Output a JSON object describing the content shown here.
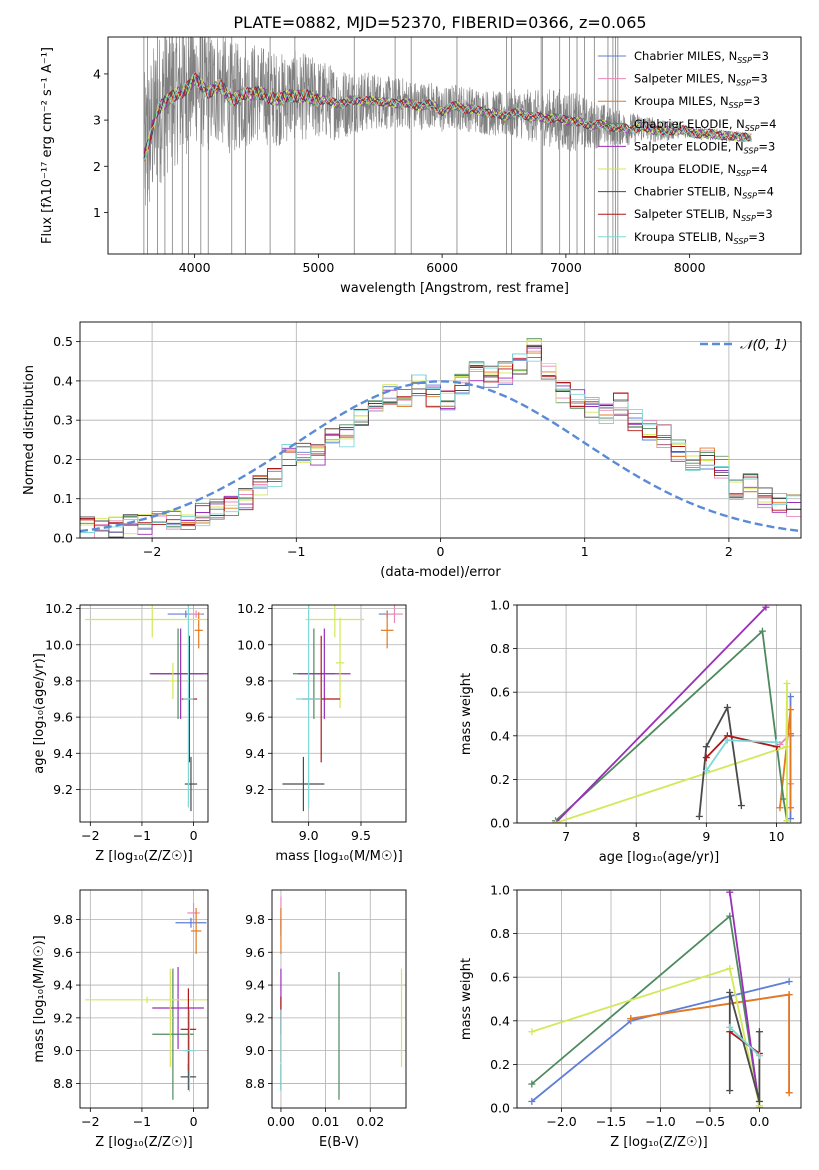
{
  "figure": {
    "title": "PLATE=0882, MJD=52370, FIBERID=0366, z=0.065"
  },
  "models": [
    {
      "name": "Chabrier MILES",
      "nssp": "3",
      "color": "#5f7fd6"
    },
    {
      "name": "Salpeter MILES",
      "nssp": "3",
      "color": "#e88ab8"
    },
    {
      "name": "Kroupa MILES",
      "nssp": "3",
      "color": "#e07a22"
    },
    {
      "name": "Chabrier ELODIE",
      "nssp": "4",
      "color": "#4e8a5e"
    },
    {
      "name": "Salpeter ELODIE",
      "nssp": "3",
      "color": "#9a2fb8"
    },
    {
      "name": "Kroupa ELODIE",
      "nssp": "4",
      "color": "#d3e85a"
    },
    {
      "name": "Chabrier STELIB",
      "nssp": "4",
      "color": "#4a4a4a"
    },
    {
      "name": "Salpeter STELIB",
      "nssp": "3",
      "color": "#b01818"
    },
    {
      "name": "Kroupa STELIB",
      "nssp": "3",
      "color": "#7fd8d8"
    }
  ],
  "chart_data": [
    {
      "id": "spectrum",
      "type": "line",
      "title": "PLATE=0882, MJD=52370, FIBERID=0366, z=0.065",
      "xlabel": "wavelength [Angstrom, rest frame]",
      "ylabel": "Flux [fλ10⁻¹⁷ erg cm⁻² s⁻¹ A⁻¹]",
      "xlim": [
        3300,
        8900
      ],
      "ylim": [
        0.1,
        4.8
      ],
      "xticks": [
        4000,
        5000,
        6000,
        7000,
        8000
      ],
      "yticks": [
        1,
        2,
        3,
        4
      ],
      "grid": false,
      "legend": "upper-right",
      "data_color": "#808080",
      "continuum": {
        "x": [
          3590,
          3700,
          3800,
          3900,
          4000,
          4100,
          4200,
          4300,
          4400,
          4500,
          4600,
          4700,
          4800,
          4900,
          5000,
          5100,
          5200,
          5300,
          5400,
          5500,
          5600,
          5700,
          5800,
          5900,
          6000,
          6100,
          6200,
          6300,
          6400,
          6500,
          6600,
          6700,
          6800,
          6900,
          7000,
          7100,
          7200,
          7300,
          7400,
          7500,
          7600,
          7700,
          7800,
          7900,
          8000,
          8100,
          8200,
          8300,
          8400,
          8500
        ],
        "y": [
          2.2,
          3.2,
          3.5,
          3.6,
          3.9,
          3.6,
          3.75,
          3.45,
          3.55,
          3.6,
          3.5,
          3.45,
          3.55,
          3.5,
          3.45,
          3.4,
          3.35,
          3.45,
          3.4,
          3.42,
          3.35,
          3.38,
          3.3,
          3.35,
          3.2,
          3.3,
          3.25,
          3.2,
          3.15,
          3.1,
          3.15,
          3.1,
          3.05,
          3.05,
          3.0,
          2.95,
          2.9,
          2.9,
          2.85,
          2.8,
          2.85,
          2.8,
          2.75,
          2.8,
          2.75,
          2.7,
          2.7,
          2.65,
          2.65,
          2.6
        ]
      },
      "noise_envelope": {
        "x": [
          3590,
          3800,
          4000,
          4500,
          5000,
          5500,
          6000,
          6500,
          6800,
          7000,
          7400,
          8000,
          8500
        ],
        "amplitude": [
          1.8,
          1.6,
          1.4,
          1.1,
          0.9,
          0.6,
          0.5,
          0.5,
          0.6,
          0.7,
          0.4,
          0.15,
          0.1
        ]
      },
      "spikes": [
        3590,
        3620,
        3700,
        3760,
        3820,
        3900,
        3950,
        4050,
        4110,
        4300,
        4410,
        4610,
        4810,
        5290,
        5620,
        5750,
        6120,
        6520,
        6560,
        6800,
        6810,
        6950,
        7030,
        7090,
        7150,
        7230,
        7340,
        7380,
        7400,
        7420
      ]
    },
    {
      "id": "residuals",
      "type": "histogram",
      "xlabel": "(data-model)/error",
      "ylabel": "Normed distribution",
      "xlim": [
        -2.5,
        2.5
      ],
      "ylim": [
        0.0,
        0.55
      ],
      "xticks": [
        -2,
        -1,
        0,
        1,
        2
      ],
      "yticks": [
        0.0,
        0.1,
        0.2,
        0.3,
        0.4,
        0.5
      ],
      "grid": true,
      "legend": "upper-right",
      "legend_label": "𝒩(0, 1)",
      "bin_width": 0.1,
      "bin_start": -2.5,
      "base_values": [
        0.025,
        0.028,
        0.03,
        0.035,
        0.038,
        0.04,
        0.045,
        0.05,
        0.06,
        0.075,
        0.08,
        0.1,
        0.13,
        0.15,
        0.21,
        0.22,
        0.21,
        0.25,
        0.26,
        0.31,
        0.33,
        0.37,
        0.36,
        0.39,
        0.36,
        0.35,
        0.39,
        0.42,
        0.41,
        0.42,
        0.44,
        0.48,
        0.42,
        0.37,
        0.36,
        0.33,
        0.32,
        0.34,
        0.3,
        0.27,
        0.26,
        0.22,
        0.2,
        0.2,
        0.18,
        0.12,
        0.14,
        0.1,
        0.09,
        0.08,
        0.07,
        0.06,
        0.05,
        0.04,
        0.035
      ],
      "normal_curve": {
        "mu": 0,
        "sigma": 1
      }
    },
    {
      "id": "age-vs-Z",
      "type": "errorbar",
      "xlabel": "Z [log₁₀(Z/Z☉)]",
      "ylabel": "age  [log₁₀(age/yr)]",
      "xlim": [
        -2.2,
        0.28
      ],
      "ylim": [
        9.02,
        10.22
      ],
      "xticks": [
        -2,
        -1,
        0
      ],
      "yticks": [
        9.2,
        9.4,
        9.6,
        9.8,
        10.0,
        10.2
      ],
      "grid": true,
      "points": [
        {
          "m": 0,
          "x": -0.15,
          "xerr": 0.35,
          "y": 10.17,
          "yerr": 0.02
        },
        {
          "m": 1,
          "x": 0.05,
          "xerr": 0.12,
          "y": 10.17,
          "yerr": 0.02
        },
        {
          "m": 2,
          "x": 0.1,
          "xerr": 0.08,
          "y": 10.08,
          "yerr": 0.1
        },
        {
          "m": 3,
          "x": -0.3,
          "xerr": 0.5,
          "y": 9.84,
          "yerr": 0.25
        },
        {
          "m": 4,
          "x": -0.25,
          "xerr": 0.6,
          "y": 9.84,
          "yerr": 0.25
        },
        {
          "m": 5,
          "x": -0.8,
          "xerr": 1.3,
          "y": 10.14,
          "yerr": 0.1
        },
        {
          "m": 5,
          "x": -0.4,
          "xerr": 0.08,
          "y": 9.8,
          "yerr": 0.1
        },
        {
          "m": 6,
          "x": -0.05,
          "xerr": 0.12,
          "y": 9.23,
          "yerr": 0.15
        },
        {
          "m": 7,
          "x": -0.08,
          "xerr": 0.15,
          "y": 9.7,
          "yerr": 0.35
        },
        {
          "m": 8,
          "x": -0.1,
          "xerr": 0.1,
          "y": 9.7,
          "yerr": 0.6
        }
      ]
    },
    {
      "id": "age-vs-mass",
      "type": "errorbar",
      "xlabel": "mass [log₁₀(M/M☉)]",
      "ylabel": "",
      "xlim": [
        8.65,
        9.93
      ],
      "ylim": [
        9.02,
        10.22
      ],
      "xticks": [
        9.0,
        9.5
      ],
      "yticks": [
        9.2,
        9.4,
        9.6,
        9.8,
        10.0,
        10.2
      ],
      "grid": true,
      "points": [
        {
          "m": 0,
          "x": 9.75,
          "xerr": 0.08,
          "y": 10.17,
          "yerr": 0.02
        },
        {
          "m": 1,
          "x": 9.82,
          "xerr": 0.08,
          "y": 10.17,
          "yerr": 0.05
        },
        {
          "m": 2,
          "x": 9.75,
          "xerr": 0.06,
          "y": 10.08,
          "yerr": 0.1
        },
        {
          "m": 3,
          "x": 9.05,
          "xerr": 0.2,
          "y": 9.84,
          "yerr": 0.25
        },
        {
          "m": 4,
          "x": 9.15,
          "xerr": 0.25,
          "y": 9.84,
          "yerr": 0.25
        },
        {
          "m": 5,
          "x": 9.25,
          "xerr": 0.28,
          "y": 10.14,
          "yerr": 0.1
        },
        {
          "m": 5,
          "x": 9.3,
          "xerr": 0.04,
          "y": 9.9,
          "yerr": 0.25
        },
        {
          "m": 6,
          "x": 8.95,
          "xerr": 0.2,
          "y": 9.23,
          "yerr": 0.15
        },
        {
          "m": 7,
          "x": 9.12,
          "xerr": 0.18,
          "y": 9.7,
          "yerr": 0.35
        },
        {
          "m": 8,
          "x": 9.0,
          "xerr": 0.12,
          "y": 9.7,
          "yerr": 0.6
        }
      ]
    },
    {
      "id": "weight-vs-age",
      "type": "line",
      "xlabel": "age  [log₁₀(age/yr)]",
      "ylabel": "mass weight",
      "xlim": [
        6.3,
        10.35
      ],
      "ylim": [
        0.0,
        1.0
      ],
      "xticks": [
        7,
        8,
        9,
        10
      ],
      "yticks": [
        0.0,
        0.2,
        0.4,
        0.6,
        0.8,
        1.0
      ],
      "grid": true,
      "series": [
        {
          "m": 0,
          "x": [
            10.2,
            10.2,
            10.2
          ],
          "y": [
            0.02,
            0.4,
            0.58
          ]
        },
        {
          "m": 1,
          "x": [
            10.05,
            10.2,
            10.2
          ],
          "y": [
            0.36,
            0.41,
            0.18
          ]
        },
        {
          "m": 2,
          "x": [
            10.05,
            10.2,
            10.2,
            10.2
          ],
          "y": [
            0.07,
            0.52,
            0.41,
            0.07
          ]
        },
        {
          "m": 3,
          "x": [
            6.85,
            9.8,
            10.1,
            10.15
          ],
          "y": [
            0.01,
            0.88,
            0.11,
            0.01
          ]
        },
        {
          "m": 4,
          "x": [
            6.85,
            9.85
          ],
          "y": [
            0.0,
            0.99
          ]
        },
        {
          "m": 5,
          "x": [
            6.85,
            10.14,
            10.15,
            10.15
          ],
          "y": [
            0.0,
            0.35,
            0.64,
            0.01
          ]
        },
        {
          "m": 6,
          "x": [
            8.9,
            9.0,
            9.3,
            9.5
          ],
          "y": [
            0.03,
            0.35,
            0.53,
            0.08
          ]
        },
        {
          "m": 7,
          "x": [
            9.0,
            9.3,
            10.0
          ],
          "y": [
            0.3,
            0.4,
            0.35
          ]
        },
        {
          "m": 8,
          "x": [
            9.0,
            9.3,
            10.0
          ],
          "y": [
            0.24,
            0.38,
            0.37
          ]
        }
      ]
    },
    {
      "id": "mass-vs-Z",
      "type": "errorbar",
      "xlabel": "Z [log₁₀(Z/Z☉)]",
      "ylabel": "mass [log₁₀(M/M☉)]",
      "xlim": [
        -2.2,
        0.28
      ],
      "ylim": [
        8.65,
        9.98
      ],
      "xticks": [
        -2,
        -1,
        0
      ],
      "yticks": [
        8.8,
        9.0,
        9.2,
        9.4,
        9.6,
        9.8
      ],
      "grid": true,
      "points": [
        {
          "m": 0,
          "x": -0.05,
          "xerr": 0.3,
          "y": 9.78,
          "yerr": 0.03
        },
        {
          "m": 1,
          "x": 0.0,
          "xerr": 0.12,
          "y": 9.84,
          "yerr": 0.06
        },
        {
          "m": 2,
          "x": 0.05,
          "xerr": 0.1,
          "y": 9.73,
          "yerr": 0.14
        },
        {
          "m": 3,
          "x": -0.4,
          "xerr": 0.4,
          "y": 9.1,
          "yerr": 0.4
        },
        {
          "m": 4,
          "x": -0.3,
          "xerr": 0.5,
          "y": 9.26,
          "yerr": 0.25
        },
        {
          "m": 5,
          "x": -0.9,
          "xerr": 1.2,
          "y": 9.31,
          "yerr": 0.02
        },
        {
          "m": 5,
          "x": -0.45,
          "xerr": 0.05,
          "y": 9.2,
          "yerr": 0.3
        },
        {
          "m": 6,
          "x": -0.1,
          "xerr": 0.15,
          "y": 8.84,
          "yerr": 0.08
        },
        {
          "m": 7,
          "x": -0.1,
          "xerr": 0.15,
          "y": 9.13,
          "yerr": 0.25
        },
        {
          "m": 8,
          "x": -0.08,
          "xerr": 0.12,
          "y": 9.0,
          "yerr": 0.25
        }
      ]
    },
    {
      "id": "mass-vs-ebv",
      "type": "errorbar",
      "xlabel": "E(B-V)",
      "ylabel": "",
      "xlim": [
        -0.002,
        0.028
      ],
      "ylim": [
        8.65,
        9.98
      ],
      "xticks": [
        0.0,
        0.01,
        0.02
      ],
      "xtick_labels": [
        "0.00",
        "0.01",
        "0.02"
      ],
      "yticks": [
        8.8,
        9.0,
        9.2,
        9.4,
        9.6,
        9.8
      ],
      "grid": true,
      "points": [
        {
          "m": 0,
          "x": 0.0,
          "xerr": 0,
          "y": 9.75,
          "yerr": 0.05
        },
        {
          "m": 1,
          "x": 0.0,
          "xerr": 0,
          "y": 9.84,
          "yerr": 0.1
        },
        {
          "m": 2,
          "x": 0.0,
          "xerr": 0,
          "y": 9.73,
          "yerr": 0.14
        },
        {
          "m": 3,
          "x": 0.013,
          "xerr": 0,
          "y": 9.09,
          "yerr": 0.39
        },
        {
          "m": 4,
          "x": 0.0,
          "xerr": 0,
          "y": 9.3,
          "yerr": 0.2
        },
        {
          "m": 5,
          "x": 0.027,
          "xerr": 0,
          "y": 9.2,
          "yerr": 0.3
        },
        {
          "m": 6,
          "x": 0.0,
          "xerr": 0,
          "y": 8.84,
          "yerr": 0.08
        },
        {
          "m": 7,
          "x": 0.0,
          "xerr": 0,
          "y": 9.13,
          "yerr": 0.2
        },
        {
          "m": 8,
          "x": 0.0,
          "xerr": 0,
          "y": 9.0,
          "yerr": 0.25
        }
      ]
    },
    {
      "id": "weight-vs-Z",
      "type": "line",
      "xlabel": "Z [log₁₀(Z/Z☉)]",
      "ylabel": "mass weight",
      "xlim": [
        -2.45,
        0.42
      ],
      "ylim": [
        0.0,
        1.0
      ],
      "xticks": [
        -2.0,
        -1.5,
        -1.0,
        -0.5,
        0.0
      ],
      "xtick_labels": [
        "−2.0",
        "−1.5",
        "−1.0",
        "−0.5",
        "0.0"
      ],
      "yticks": [
        0.0,
        0.2,
        0.4,
        0.6,
        0.8,
        1.0
      ],
      "grid": true,
      "series": [
        {
          "m": 0,
          "x": [
            -2.3,
            -1.3,
            0.3
          ],
          "y": [
            0.03,
            0.4,
            0.58
          ]
        },
        {
          "m": 1,
          "x": [
            -1.3,
            0.3,
            0.3
          ],
          "y": [
            0.41,
            0.52,
            0.07
          ]
        },
        {
          "m": 2,
          "x": [
            -1.3,
            0.3,
            0.3
          ],
          "y": [
            0.41,
            0.52,
            0.07
          ]
        },
        {
          "m": 3,
          "x": [
            -2.3,
            -0.3,
            0.0
          ],
          "y": [
            0.11,
            0.88,
            0.01
          ]
        },
        {
          "m": 4,
          "x": [
            -0.3,
            0.0
          ],
          "y": [
            0.99,
            0.0
          ]
        },
        {
          "m": 5,
          "x": [
            -2.3,
            -0.3,
            0.0,
            0.0
          ],
          "y": [
            0.35,
            0.64,
            0.01,
            0.01
          ]
        },
        {
          "m": 6,
          "x": [
            -0.3,
            -0.3,
            0.0,
            0.0
          ],
          "y": [
            0.08,
            0.53,
            0.03,
            0.35
          ]
        },
        {
          "m": 7,
          "x": [
            -0.3,
            0.0
          ],
          "y": [
            0.35,
            0.25
          ]
        },
        {
          "m": 8,
          "x": [
            -0.3,
            0.0
          ],
          "y": [
            0.37,
            0.24
          ]
        }
      ]
    }
  ]
}
